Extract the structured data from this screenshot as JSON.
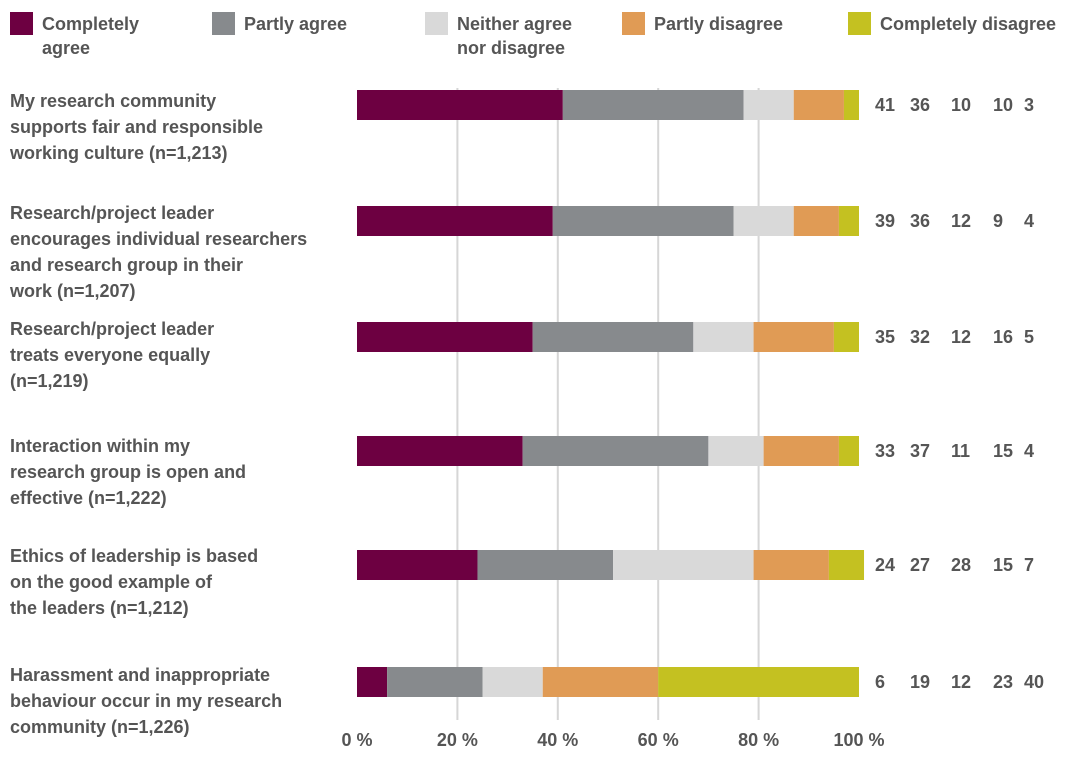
{
  "chart_data": {
    "type": "bar",
    "orientation": "horizontal",
    "stacked": true,
    "title": "",
    "xlabel": "",
    "ylabel": "",
    "xlim": [
      0,
      100
    ],
    "x_tick_labels": [
      "0 %",
      "20 %",
      "40 %",
      "60 %",
      "80 %",
      "100 %"
    ],
    "grid": true,
    "legend_position": "top",
    "categories": [
      "My research community supports fair and responsible working culture (n=1,213)",
      "Research/project leader encourages individual researchers and research group in their work (n=1,207)",
      "Research/project leader treats everyone equally (n=1,219)",
      "Interaction within my research group is open and effective (n=1,222)",
      "Ethics of leadership is based on the good example of the leaders (n=1,212)",
      "Harassment and inappropriate behaviour occur in my research community (n=1,226)"
    ],
    "category_label_lines": [
      [
        "My research community",
        "supports fair and responsible",
        "working culture (n=1,213)"
      ],
      [
        "Research/project leader",
        "encourages individual researchers",
        "and research group in their",
        "work (n=1,207)"
      ],
      [
        "Research/project leader",
        "treats everyone equally",
        "(n=1,219)"
      ],
      [
        "Interaction within my",
        "research group is open and",
        "effective (n=1,222)"
      ],
      [
        "Ethics of leadership is based",
        "on the good example of",
        "the leaders (n=1,212)"
      ],
      [
        "Harassment and inappropriate",
        "behaviour occur in my research",
        "community (n=1,226)"
      ]
    ],
    "series": [
      {
        "name": "Completely agree",
        "legend_lines": [
          "Completely",
          "agree"
        ],
        "color": "#6d0041",
        "values": [
          41,
          39,
          35,
          33,
          24,
          6
        ]
      },
      {
        "name": "Partly agree",
        "legend_lines": [
          "Partly agree"
        ],
        "color": "#878a8d",
        "values": [
          36,
          36,
          32,
          37,
          27,
          19
        ]
      },
      {
        "name": "Neither agree nor disagree",
        "legend_lines": [
          "Neither agree",
          "nor disagree"
        ],
        "color": "#d9d9d9",
        "values": [
          10,
          12,
          12,
          11,
          28,
          12
        ]
      },
      {
        "name": "Partly disagree",
        "legend_lines": [
          "Partly disagree"
        ],
        "color": "#e09b55",
        "values": [
          10,
          9,
          16,
          15,
          15,
          23
        ]
      },
      {
        "name": "Completely disagree",
        "legend_lines": [
          "Completely disagree"
        ],
        "color": "#c4c121",
        "values": [
          3,
          4,
          5,
          4,
          7,
          40
        ]
      }
    ]
  }
}
